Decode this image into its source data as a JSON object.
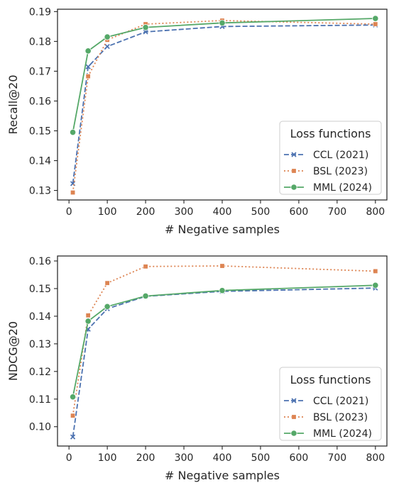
{
  "chart_data": [
    {
      "type": "line",
      "title": "",
      "xlabel": "# Negative samples",
      "ylabel": "Recall@20",
      "xlim": [
        -30,
        830
      ],
      "ylim": [
        0.1268,
        0.1908
      ],
      "x_ticks": [
        0,
        100,
        200,
        300,
        400,
        500,
        600,
        700,
        800
      ],
      "y_ticks": [
        0.13,
        0.14,
        0.15,
        0.16,
        0.17,
        0.18,
        0.19
      ],
      "grid": false,
      "legend": {
        "title": "Loss functions",
        "position": "lower-right"
      },
      "x": [
        10,
        50,
        100,
        200,
        400,
        800
      ],
      "series": [
        {
          "name": "CCL (2021)",
          "color": "#4c72b0",
          "marker": "x",
          "dash": "dashed",
          "values": [
            0.1323,
            0.1715,
            0.1783,
            0.1832,
            0.185,
            0.1855
          ]
        },
        {
          "name": "BSL (2023)",
          "color": "#dd8452",
          "marker": "square",
          "dash": "dotted",
          "values": [
            0.1293,
            0.1683,
            0.1805,
            0.1858,
            0.187,
            0.1858
          ]
        },
        {
          "name": "MML (2024)",
          "color": "#55a868",
          "marker": "circle",
          "dash": "solid",
          "values": [
            0.1495,
            0.1768,
            0.1815,
            0.1847,
            0.1862,
            0.1877
          ]
        }
      ]
    },
    {
      "type": "line",
      "title": "",
      "xlabel": "# Negative samples",
      "ylabel": "NDCG@20",
      "xlim": [
        -30,
        830
      ],
      "ylim": [
        0.093,
        0.1618
      ],
      "x_ticks": [
        0,
        100,
        200,
        300,
        400,
        500,
        600,
        700,
        800
      ],
      "y_ticks": [
        0.1,
        0.11,
        0.12,
        0.13,
        0.14,
        0.15,
        0.16
      ],
      "grid": false,
      "legend": {
        "title": "Loss functions",
        "position": "lower-right"
      },
      "x": [
        10,
        50,
        100,
        200,
        400,
        800
      ],
      "series": [
        {
          "name": "CCL (2021)",
          "color": "#4c72b0",
          "marker": "x",
          "dash": "dashed",
          "values": [
            0.0963,
            0.1353,
            0.1427,
            0.1472,
            0.149,
            0.1502
          ]
        },
        {
          "name": "BSL (2023)",
          "color": "#dd8452",
          "marker": "square",
          "dash": "dotted",
          "values": [
            0.104,
            0.1403,
            0.152,
            0.158,
            0.1582,
            0.1563
          ]
        },
        {
          "name": "MML (2024)",
          "color": "#55a868",
          "marker": "circle",
          "dash": "solid",
          "values": [
            0.1108,
            0.1382,
            0.1435,
            0.1473,
            0.1493,
            0.1512
          ]
        }
      ]
    }
  ]
}
